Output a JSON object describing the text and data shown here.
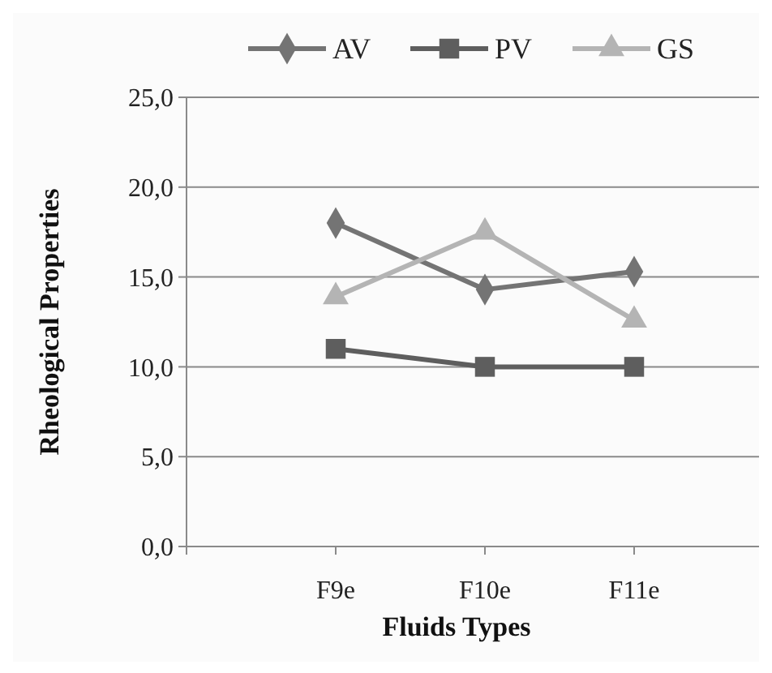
{
  "chart_data": {
    "type": "line",
    "xlabel": "Fluids Types",
    "ylabel": "Rheological Properties",
    "categories": [
      null,
      "F9e",
      "F10e",
      "F11e",
      null
    ],
    "series": [
      {
        "name": "AV",
        "color": "#747474",
        "marker": "diamond",
        "values": [
          null,
          18.0,
          14.3,
          15.3,
          null
        ]
      },
      {
        "name": "PV",
        "color": "#5e5e5e",
        "marker": "square",
        "values": [
          null,
          11.0,
          10.0,
          10.0,
          null
        ]
      },
      {
        "name": "GS",
        "color": "#b4b4b4",
        "marker": "triangle",
        "values": [
          null,
          13.9,
          17.5,
          12.6,
          null
        ]
      }
    ],
    "ylim": [
      0,
      25
    ],
    "yticks": [
      {
        "value": 0,
        "label": "0,0"
      },
      {
        "value": 5,
        "label": "5,0"
      },
      {
        "value": 10,
        "label": "10,0"
      },
      {
        "value": 15,
        "label": "15,0"
      },
      {
        "value": 20,
        "label": "20,0"
      },
      {
        "value": 25,
        "label": "25,0"
      }
    ],
    "grid": "y",
    "legend": "top"
  }
}
